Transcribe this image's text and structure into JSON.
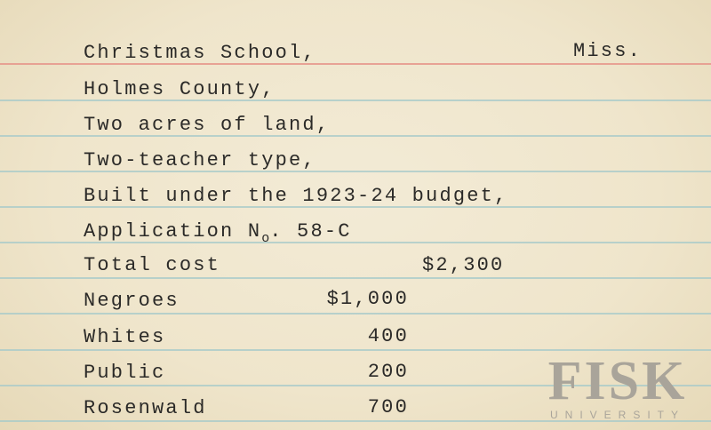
{
  "card": {
    "school": "Christmas School,",
    "state": "Miss.",
    "county": "Holmes County,",
    "land": "Two acres of land,",
    "type": "Two-teacher type,",
    "budget": "Built under the 1923-24 budget,",
    "application_prefix": "Application N",
    "application_sub": "o",
    "application_number": ". 58-C",
    "total_label": "Total cost",
    "total_value": "$2,300",
    "contributions": [
      {
        "label": "Negroes",
        "value": "$1,000"
      },
      {
        "label": "Whites",
        "value": "400"
      },
      {
        "label": "Public",
        "value": "200"
      },
      {
        "label": "Rosenwald",
        "value": "700"
      }
    ]
  },
  "watermark": {
    "name": "FISK",
    "subtitle": "UNIVERSITY"
  },
  "colors": {
    "paper": "#efe5cb",
    "ink": "#2b2a28",
    "red_rule": "#e79a8e",
    "blue_rule": "#a9cbc9"
  }
}
